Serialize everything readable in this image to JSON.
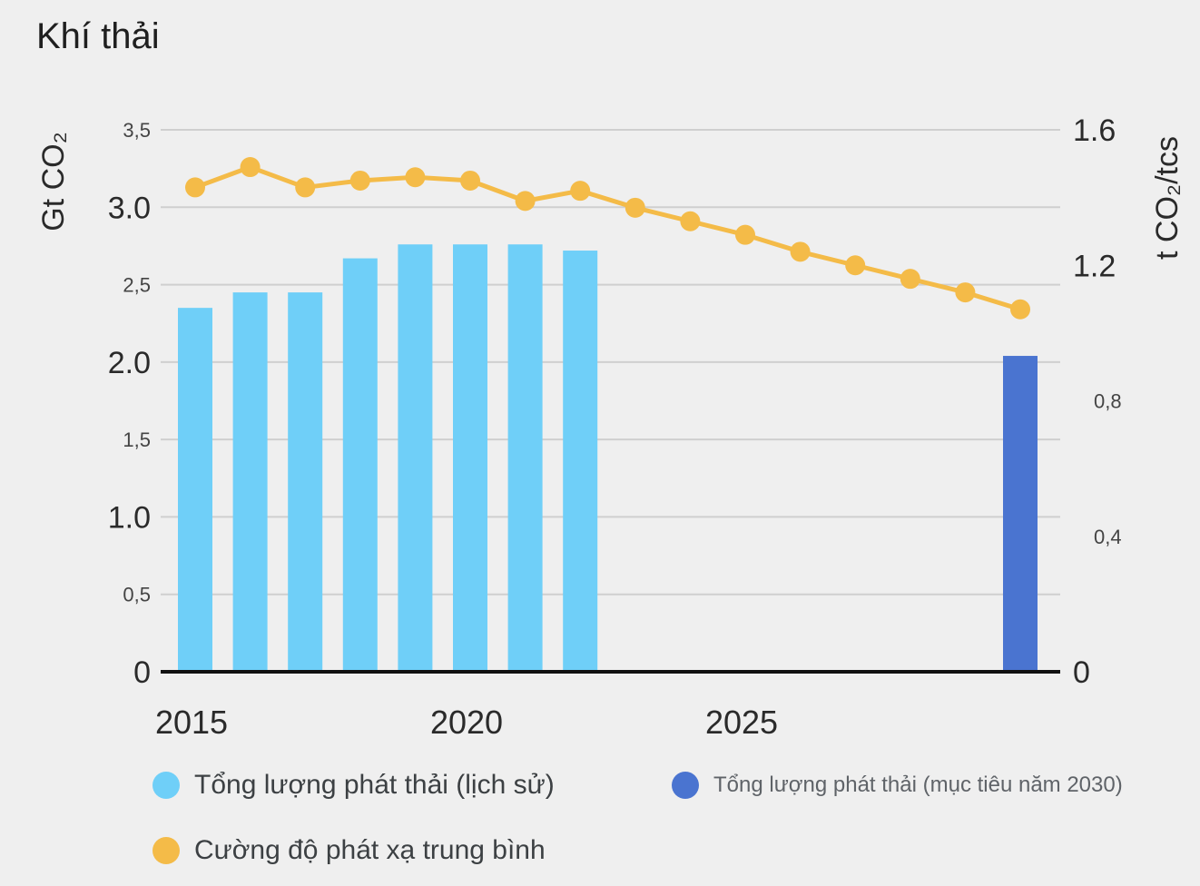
{
  "page": {
    "title": "Khí thải"
  },
  "colors": {
    "hist_bar": "#6fcff8",
    "target_bar": "#4a74d0",
    "line": "#f4bb48",
    "grid": "#cfcfcf",
    "axis": "#111111"
  },
  "chart_data": {
    "type": "bar",
    "left_axis": {
      "label": "Gt CO₂",
      "ylim": [
        0,
        3.5
      ],
      "ticks": [
        {
          "value": 0,
          "label": "0"
        },
        {
          "value": 0.5,
          "label": "0,5"
        },
        {
          "value": 1.0,
          "label": "1.0"
        },
        {
          "value": 1.5,
          "label": "1,5"
        },
        {
          "value": 2.0,
          "label": "2.0"
        },
        {
          "value": 2.5,
          "label": "2,5"
        },
        {
          "value": 3.0,
          "label": "3.0"
        },
        {
          "value": 3.5,
          "label": "3,5"
        }
      ]
    },
    "right_axis": {
      "label": "t CO₂/tcs",
      "ylim": [
        0,
        1.6
      ],
      "ticks": [
        {
          "value": 0,
          "label": "0"
        },
        {
          "value": 0.4,
          "label": "0,4"
        },
        {
          "value": 0.8,
          "label": "0,8"
        },
        {
          "value": 1.2,
          "label": "1.2"
        },
        {
          "value": 1.6,
          "label": "1.6"
        }
      ]
    },
    "x_axis": {
      "range": [
        2015,
        2030
      ],
      "ticks": [
        {
          "value": 2015,
          "label": "2015"
        },
        {
          "value": 2020,
          "label": "2020"
        },
        {
          "value": 2025,
          "label": "2025"
        }
      ]
    },
    "series": [
      {
        "name": "Tổng lượng phát thải (lịch sử)",
        "type": "bar",
        "axis": "left",
        "x": [
          2015,
          2016,
          2017,
          2018,
          2019,
          2020,
          2021,
          2022
        ],
        "values": [
          2.35,
          2.45,
          2.45,
          2.67,
          2.76,
          2.76,
          2.76,
          2.72
        ]
      },
      {
        "name": "Tổng lượng phát thải (mục tiêu năm 2030)",
        "type": "bar",
        "axis": "left",
        "x": [
          2030
        ],
        "values": [
          2.04
        ]
      },
      {
        "name": "Cường độ phát xạ trung bình",
        "type": "line",
        "axis": "right",
        "x": [
          2015,
          2016,
          2017,
          2018,
          2019,
          2020,
          2021,
          2022,
          2023,
          2024,
          2025,
          2026,
          2027,
          2028,
          2029,
          2030
        ],
        "values": [
          1.43,
          1.49,
          1.43,
          1.45,
          1.46,
          1.45,
          1.39,
          1.42,
          1.37,
          1.33,
          1.29,
          1.24,
          1.2,
          1.16,
          1.12,
          1.07
        ]
      }
    ],
    "grid": true,
    "legend_position": "bottom"
  },
  "legend": [
    {
      "label": "Tổng lượng phát thải (lịch sử)",
      "color": "#6fcff8"
    },
    {
      "label": "Tổng lượng phát thải (mục tiêu năm 2030)",
      "color": "#4a74d0"
    },
    {
      "label": "Cường độ phát xạ trung bình",
      "color": "#f4bb48"
    }
  ]
}
